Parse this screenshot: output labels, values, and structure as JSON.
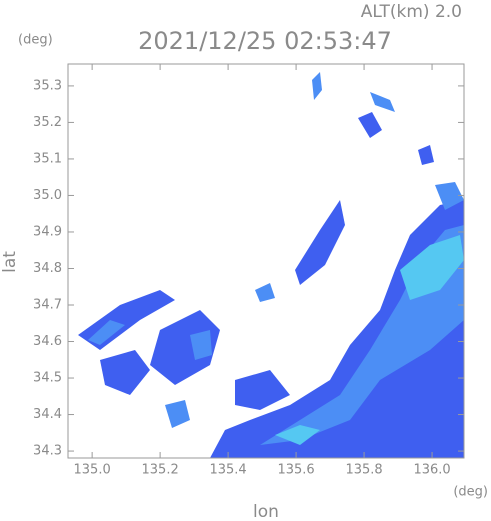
{
  "header": {
    "altitude": "ALT(km) 2.0",
    "timestamp": "2021/12/25 02:53:47"
  },
  "axes": {
    "y": {
      "title": "lat",
      "unit": "(deg)",
      "lim": [
        34.281,
        35.36
      ],
      "ticks": [
        {
          "value": 34.3,
          "label": "34.3"
        },
        {
          "value": 34.4,
          "label": "34.4"
        },
        {
          "value": 34.5,
          "label": "34.5"
        },
        {
          "value": 34.6,
          "label": "34.6"
        },
        {
          "value": 34.7,
          "label": "34.7"
        },
        {
          "value": 34.8,
          "label": "34.8"
        },
        {
          "value": 34.9,
          "label": "34.9"
        },
        {
          "value": 35,
          "label": "35.0"
        },
        {
          "value": 35.1,
          "label": "35.1"
        },
        {
          "value": 35.2,
          "label": "35.2"
        },
        {
          "value": 35.3,
          "label": "35.3"
        }
      ]
    },
    "x": {
      "title": "lon",
      "unit": "(deg)",
      "lim": [
        134.929,
        136.094
      ],
      "ticks": [
        {
          "value": 135,
          "label": "135.0"
        },
        {
          "value": 135.2,
          "label": "135.2"
        },
        {
          "value": 135.4,
          "label": "135.4"
        },
        {
          "value": 135.6,
          "label": "135.6"
        },
        {
          "value": 135.8,
          "label": "135.8"
        },
        {
          "value": 136,
          "label": "136.0"
        }
      ]
    }
  }
}
